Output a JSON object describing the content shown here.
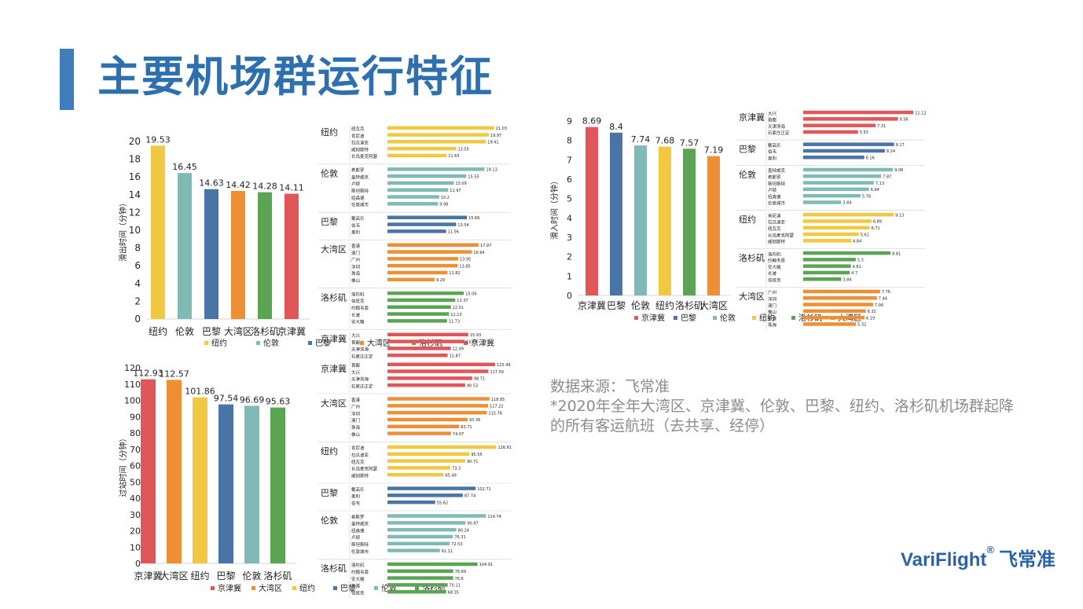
{
  "header": {
    "title": "主要机场群运行特征"
  },
  "source": {
    "line1": "数据来源：飞常准",
    "line2": "*2020年全年大湾区、京津冀、伦敦、巴黎、纽约、洛杉矶机场群起降",
    "line3": "的所有客运航班（去共享、经停）"
  },
  "logo": {
    "brand": "VariFlight",
    "reg": "®",
    "cn": "飞常准"
  },
  "colors": {
    "纽约": "#f0c842",
    "伦敦": "#7fbbb4",
    "巴黎": "#4a73a6",
    "大湾区": "#ee8f35",
    "洛杉矶": "#5aa454",
    "京津冀": "#e15659"
  },
  "chart_data": [
    {
      "id": "taxi-out",
      "type": "bar",
      "ylabel": "滑出时间（分钟）",
      "ylim": [
        0,
        20
      ],
      "yticks": [
        0,
        2,
        4,
        6,
        8,
        10,
        12,
        14,
        16,
        18,
        20
      ],
      "categories": [
        "纽约",
        "伦敦",
        "巴黎",
        "大湾区",
        "洛杉矶",
        "京津冀"
      ],
      "values": [
        19.53,
        16.45,
        14.63,
        14.42,
        14.28,
        14.11
      ],
      "legend": [
        "纽约",
        "伦敦",
        "巴黎",
        "大湾区",
        "洛杉矶",
        "京津冀"
      ],
      "breakdown": {
        "xmax": 22,
        "groups": [
          {
            "name": "纽约",
            "items": [
              [
                "纽瓦克",
                21.03
              ],
              [
                "肯尼迪",
                19.97
              ],
              [
                "拉瓜迪亚",
                19.41
              ],
              [
                "威彻斯特",
                13.55
              ],
              [
                "长岛麦克阿瑟",
                11.65
              ]
            ]
          },
          {
            "name": "伦敦",
            "items": [
              [
                "希斯罗",
                19.13
              ],
              [
                "盖特威克",
                15.55
              ],
              [
                "卢顿",
                13.09
              ],
              [
                "斯坦斯特",
                11.97
              ],
              [
                "绍森德",
                10.2
              ],
              [
                "伦敦城市",
                9.96
              ]
            ]
          },
          {
            "name": "巴黎",
            "items": [
              [
                "戴高乐",
                15.66
              ],
              [
                "伯韦",
                13.54
              ],
              [
                "奥利",
                11.56
              ]
            ]
          },
          {
            "name": "大湾区",
            "items": [
              [
                "香港",
                17.97
              ],
              [
                "澳门",
                16.64
              ],
              [
                "广州",
                13.95
              ],
              [
                "深圳",
                13.85
              ],
              [
                "珠海",
                11.82
              ],
              [
                "佛山",
                9.29
              ]
            ]
          },
          {
            "name": "洛杉矶",
            "items": [
              [
                "洛杉矶",
                15.06
              ],
              [
                "伯班克",
                13.37
              ],
              [
                "约翰韦恩",
                12.51
              ],
              [
                "长滩",
                12.13
              ],
              [
                "安大略",
                11.73
              ]
            ]
          },
          {
            "name": "京津冀",
            "items": [
              [
                "大兴",
                15.93
              ],
              [
                "首都",
                15.19
              ],
              [
                "天津滨海",
                12.49
              ],
              [
                "石家庄正定",
                11.87
              ]
            ]
          }
        ]
      }
    },
    {
      "id": "taxi-in",
      "type": "bar",
      "ylabel": "滑入时间（分钟）",
      "ylim": [
        0,
        9
      ],
      "yticks": [
        0,
        1,
        2,
        3,
        4,
        5,
        6,
        7,
        8,
        9
      ],
      "categories": [
        "京津冀",
        "巴黎",
        "伦敦",
        "纽约",
        "洛杉矶",
        "大湾区"
      ],
      "values": [
        8.69,
        8.4,
        7.74,
        7.68,
        7.57,
        7.19
      ],
      "legend": [
        "京津冀",
        "巴黎",
        "伦敦",
        "纽约",
        "洛杉矶",
        "大湾区"
      ],
      "breakdown": {
        "xmax": 11.5,
        "groups": [
          {
            "name": "京津冀",
            "items": [
              [
                "大兴",
                11.12
              ],
              [
                "首都",
                9.56
              ],
              [
                "天津滨海",
                7.31
              ],
              [
                "石家庄正定",
                5.53
              ]
            ]
          },
          {
            "name": "巴黎",
            "items": [
              [
                "戴高乐",
                9.17
              ],
              [
                "伯韦",
                8.24
              ],
              [
                "奥利",
                6.16
              ]
            ]
          },
          {
            "name": "伦敦",
            "items": [
              [
                "盖特威克",
                9.06
              ],
              [
                "希斯罗",
                7.87
              ],
              [
                "斯坦斯特",
                7.13
              ],
              [
                "卢顿",
                6.64
              ],
              [
                "绍森德",
                5.78
              ],
              [
                "伦敦城市",
                3.84
              ]
            ]
          },
          {
            "name": "纽约",
            "items": [
              [
                "肯尼迪",
                9.13
              ],
              [
                "拉瓜迪亚",
                6.89
              ],
              [
                "纽瓦克",
                6.71
              ],
              [
                "长岛麦克阿瑟",
                5.61
              ],
              [
                "威彻斯特",
                4.84
              ]
            ]
          },
          {
            "name": "洛杉矶",
            "items": [
              [
                "洛杉矶",
                8.81
              ],
              [
                "约翰韦恩",
                5.3
              ],
              [
                "安大略",
                4.81
              ],
              [
                "长滩",
                4.7
              ],
              [
                "伯班克",
                3.84
              ]
            ]
          },
          {
            "name": "大湾区",
            "items": [
              [
                "广州",
                7.76
              ],
              [
                "深圳",
                7.44
              ],
              [
                "澳门",
                7.06
              ],
              [
                "佛山",
                6.32
              ],
              [
                "香港",
                6.19
              ],
              [
                "珠海",
                5.32
              ]
            ]
          }
        ]
      }
    },
    {
      "id": "turnaround",
      "type": "bar",
      "ylabel": "过站时间（分钟）",
      "ylim": [
        0,
        120
      ],
      "yticks": [
        0,
        10,
        20,
        30,
        40,
        50,
        60,
        70,
        80,
        90,
        100,
        110,
        120
      ],
      "categories": [
        "京津冀",
        "大湾区",
        "纽约",
        "巴黎",
        "伦敦",
        "洛杉矶"
      ],
      "values": [
        112.93,
        112.57,
        101.86,
        97.54,
        96.69,
        95.63
      ],
      "legend": [
        "京津冀",
        "大湾区",
        "纽约",
        "巴黎",
        "伦敦",
        "洛杉矶"
      ],
      "breakdown": {
        "xmax": 130,
        "groups": [
          {
            "name": "京津冀",
            "items": [
              [
                "首都",
                125.49
              ],
              [
                "大兴",
                117.59
              ],
              [
                "天津滨海",
                98.71
              ],
              [
                "石家庄正定",
                90.53
              ]
            ]
          },
          {
            "name": "大湾区",
            "items": [
              [
                "香港",
                118.85
              ],
              [
                "广州",
                117.22
              ],
              [
                "深圳",
                115.76
              ],
              [
                "澳门",
                93.36
              ],
              [
                "珠海",
                83.71
              ],
              [
                "佛山",
                74.07
              ]
            ]
          },
          {
            "name": "纽约",
            "items": [
              [
                "肯尼迪",
                126.81
              ],
              [
                "拉瓜迪亚",
                95.55
              ],
              [
                "纽瓦克",
                90.71
              ],
              [
                "长岛麦克阿瑟",
                73.3
              ],
              [
                "威彻斯特",
                65.49
              ]
            ]
          },
          {
            "name": "巴黎",
            "items": [
              [
                "戴高乐",
                102.71
              ],
              [
                "奥利",
                87.74
              ],
              [
                "伯韦",
                55.62
              ]
            ]
          },
          {
            "name": "伦敦",
            "items": [
              [
                "希斯罗",
                114.74
              ],
              [
                "盖特威克",
                90.97
              ],
              [
                "绍森德",
                80.24
              ],
              [
                "卢顿",
                76.31
              ],
              [
                "斯坦斯特",
                72.53
              ],
              [
                "伦敦城市",
                61.11
              ]
            ]
          },
          {
            "name": "洛杉矶",
            "items": [
              [
                "洛杉矶",
                104.91
              ],
              [
                "约翰韦恩",
                76.69
              ],
              [
                "安大略",
                76.6
              ],
              [
                "长滩",
                70.11
              ],
              [
                "伯班克",
                68.35
              ]
            ]
          }
        ]
      }
    }
  ]
}
